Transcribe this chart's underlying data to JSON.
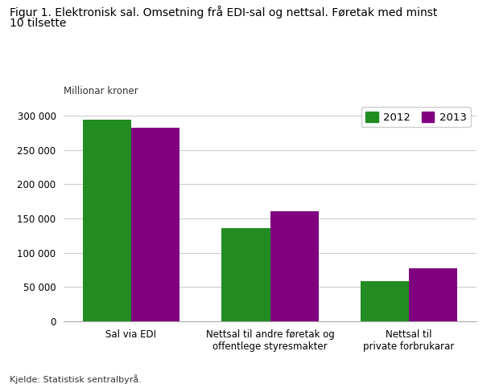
{
  "title_line1": "Figur 1. Elektronisk sal. Omsetning frå EDI-sal og nettsal. Føretak med minst",
  "title_line2": "10 tilsette",
  "ylabel": "Millionar kroner",
  "source": "Kjelde: Statistisk sentralbyrå.",
  "categories": [
    "Sal via EDI",
    "Nettsal til andre føretak og\noffentlege styresmakter",
    "Nettsal til\nprivate forbrukarar"
  ],
  "values_2012": [
    294000,
    136000,
    59000
  ],
  "values_2013": [
    282000,
    161000,
    77000
  ],
  "color_2012": "#228B22",
  "color_2013": "#800080",
  "ylim": [
    0,
    320000
  ],
  "yticks": [
    0,
    50000,
    100000,
    150000,
    200000,
    250000,
    300000
  ],
  "ytick_labels": [
    "0",
    "50 000",
    "100 000",
    "150 000",
    "200 000",
    "250 000",
    "300 000"
  ],
  "bar_width": 0.35,
  "legend_labels": [
    "2012",
    "2013"
  ],
  "background_color": "#ffffff",
  "grid_color": "#cccccc"
}
